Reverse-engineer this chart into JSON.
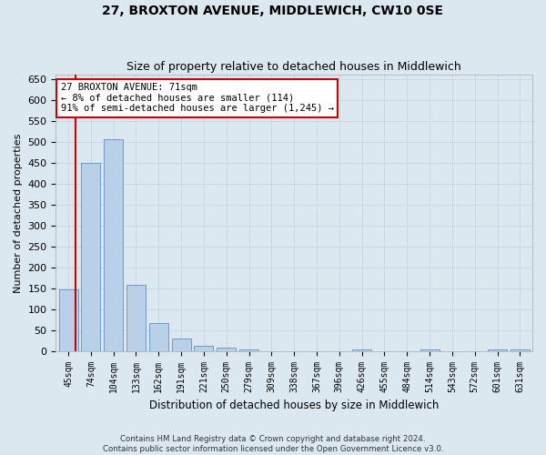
{
  "title": "27, BROXTON AVENUE, MIDDLEWICH, CW10 0SE",
  "subtitle": "Size of property relative to detached houses in Middlewich",
  "xlabel": "Distribution of detached houses by size in Middlewich",
  "ylabel": "Number of detached properties",
  "categories": [
    "45sqm",
    "74sqm",
    "104sqm",
    "133sqm",
    "162sqm",
    "191sqm",
    "221sqm",
    "250sqm",
    "279sqm",
    "309sqm",
    "338sqm",
    "367sqm",
    "396sqm",
    "426sqm",
    "455sqm",
    "484sqm",
    "514sqm",
    "543sqm",
    "572sqm",
    "601sqm",
    "631sqm"
  ],
  "values": [
    148,
    450,
    507,
    158,
    67,
    31,
    14,
    9,
    5,
    0,
    0,
    0,
    0,
    5,
    0,
    0,
    5,
    0,
    0,
    5,
    5
  ],
  "bar_color": "#b8d0e8",
  "bar_edge_color": "#6090c0",
  "grid_color": "#c8d8e8",
  "background_color": "#dce8f0",
  "annotation_box_color": "#ffffff",
  "annotation_border_color": "#cc0000",
  "property_line_color": "#cc0000",
  "property_sqm": 71,
  "property_label": "27 BROXTON AVENUE: 71sqm",
  "annotation_line1": "← 8% of detached houses are smaller (114)",
  "annotation_line2": "91% of semi-detached houses are larger (1,245) →",
  "ylim": [
    0,
    660
  ],
  "yticks": [
    0,
    50,
    100,
    150,
    200,
    250,
    300,
    350,
    400,
    450,
    500,
    550,
    600,
    650
  ],
  "footer_line1": "Contains HM Land Registry data © Crown copyright and database right 2024.",
  "footer_line2": "Contains public sector information licensed under the Open Government Licence v3.0.",
  "title_fontsize": 10,
  "subtitle_fontsize": 9
}
